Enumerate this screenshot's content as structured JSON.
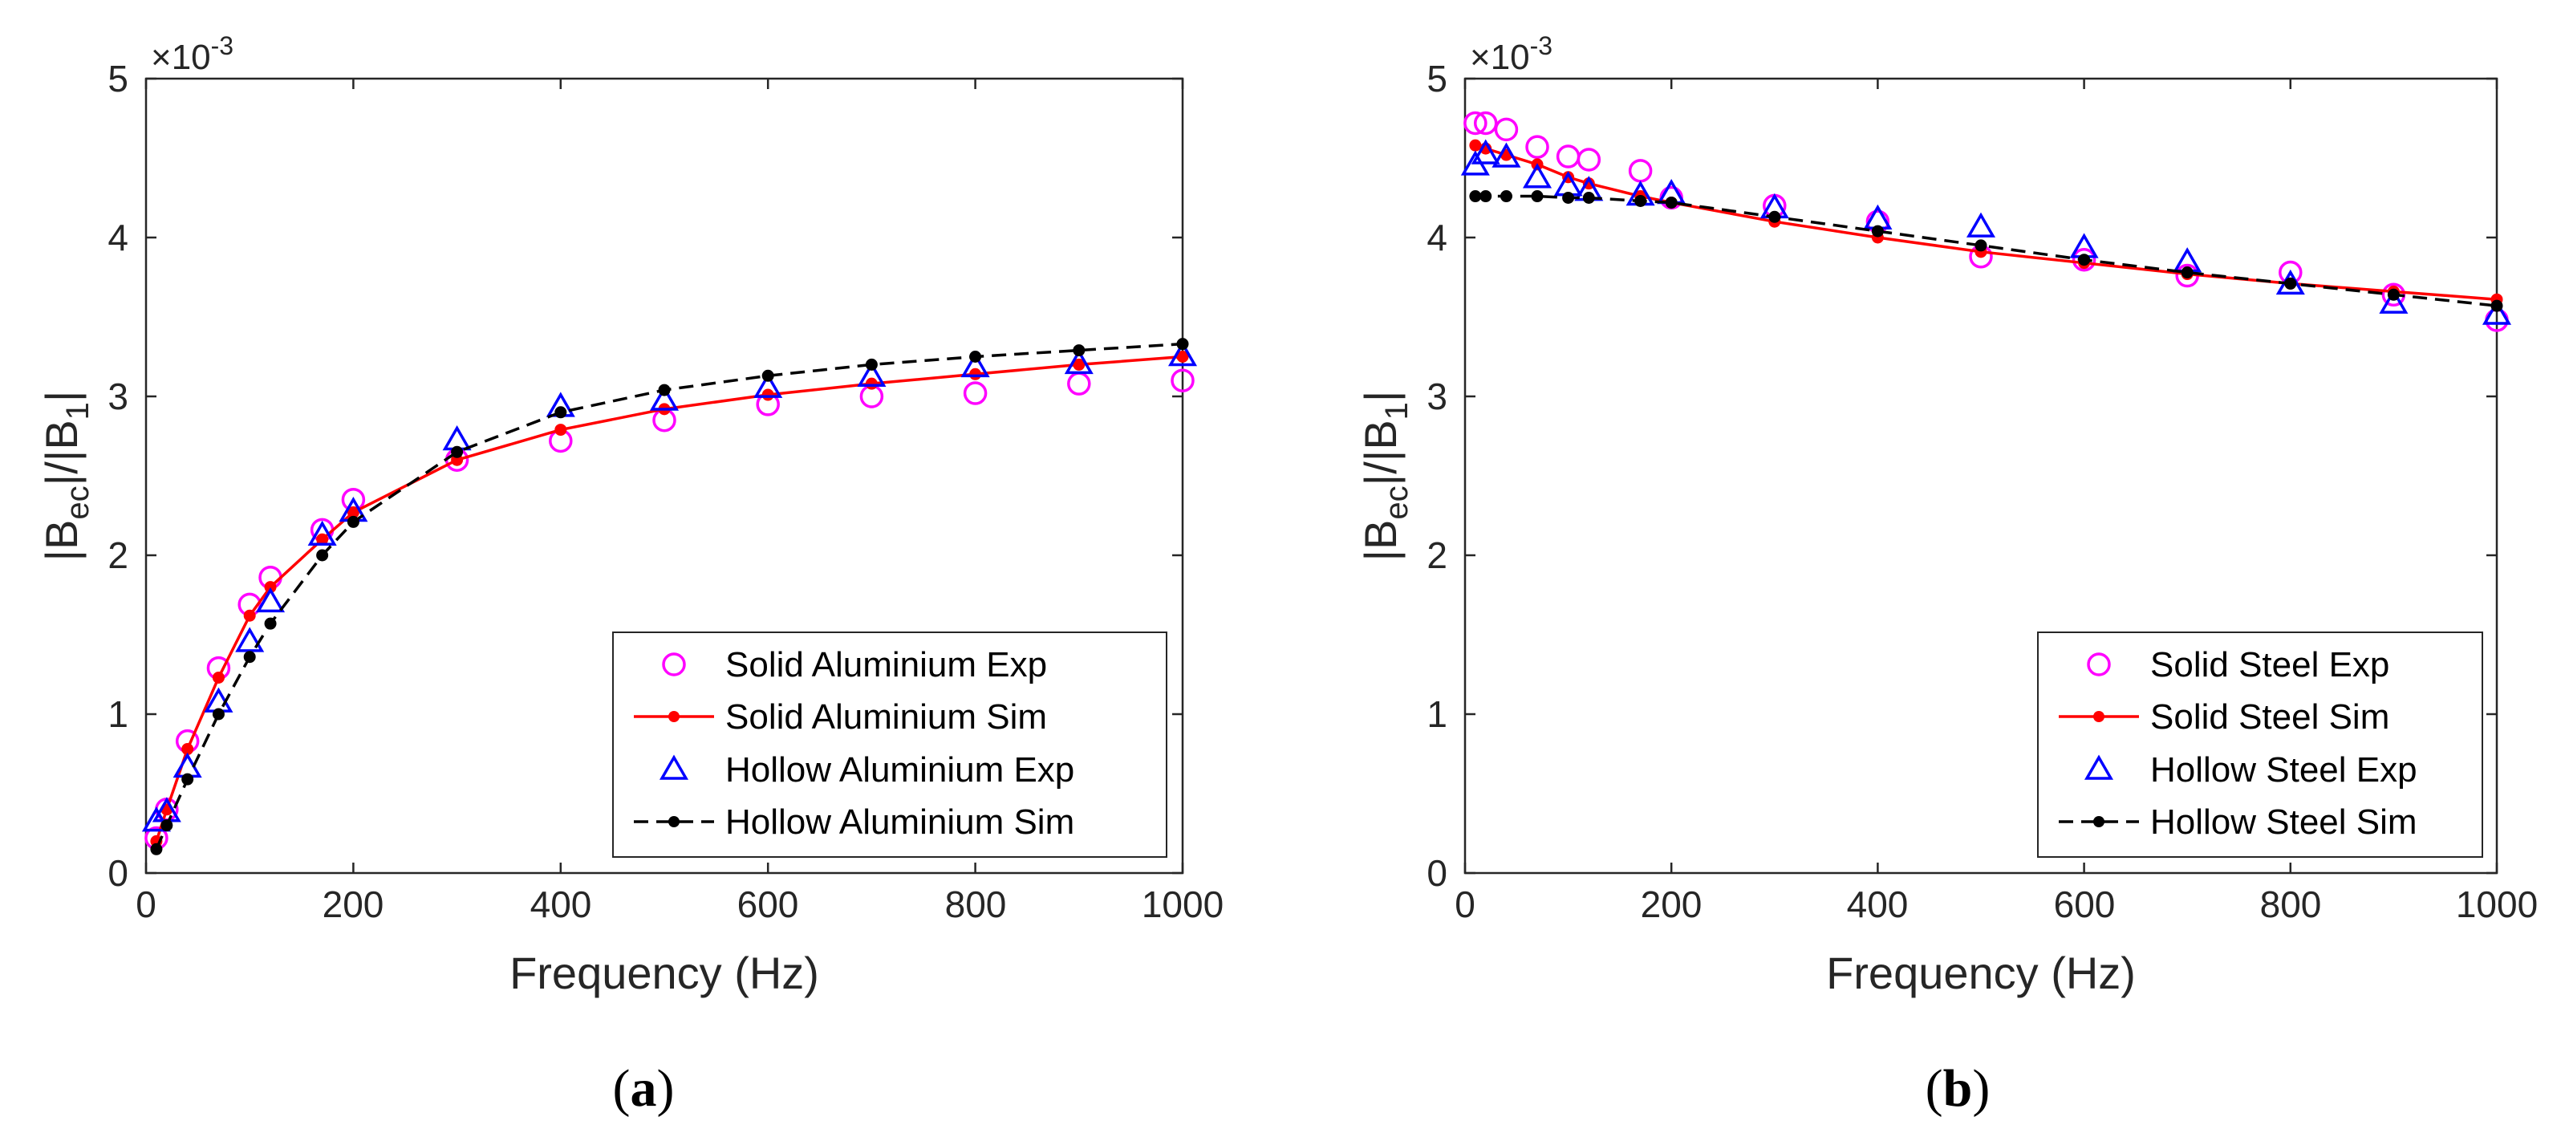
{
  "colors": {
    "solid_exp": "#ff00ff",
    "solid_sim": "#ff0000",
    "hollow_exp": "#0000ff",
    "hollow_sim": "#000000",
    "axis": "#262626"
  },
  "chart_data": [
    {
      "type": "line",
      "panel_label": "(a)",
      "subcaption_open": "(",
      "subcaption_letter": "a",
      "subcaption_close": ")",
      "xlabel": "Frequency (Hz)",
      "ylabel_parts": {
        "bar_left": "|B",
        "sub1": "ec",
        "mid": "|/|B",
        "sub2": "1",
        "bar_right": "|"
      },
      "y_exponent_base": "×10",
      "y_exponent_power": "-3",
      "xlim": [
        0,
        1000
      ],
      "ylim": [
        0,
        5
      ],
      "xticks": [
        "0",
        "200",
        "400",
        "600",
        "800",
        "1000"
      ],
      "yticks": [
        "0",
        "1",
        "2",
        "3",
        "4",
        "5"
      ],
      "legend_position": "bottom-right",
      "legend": [
        "Solid Aluminium Exp",
        "Solid Aluminium Sim",
        "Hollow Aluminium Exp",
        "Hollow Aluminium Sim"
      ],
      "series": [
        {
          "name": "Solid Aluminium Exp",
          "style": "circle",
          "x": [
            10,
            20,
            40,
            70,
            100,
            120,
            170,
            200,
            300,
            400,
            500,
            600,
            700,
            800,
            900,
            1000
          ],
          "y": [
            0.22,
            0.4,
            0.83,
            1.29,
            1.69,
            1.86,
            2.16,
            2.35,
            2.6,
            2.72,
            2.85,
            2.95,
            3.0,
            3.02,
            3.08,
            3.1
          ]
        },
        {
          "name": "Solid Aluminium Sim",
          "style": "line-dot",
          "x": [
            10,
            20,
            40,
            70,
            100,
            120,
            170,
            200,
            300,
            400,
            500,
            600,
            700,
            800,
            900,
            1000
          ],
          "y": [
            0.2,
            0.4,
            0.78,
            1.23,
            1.62,
            1.8,
            2.1,
            2.27,
            2.6,
            2.79,
            2.92,
            3.01,
            3.08,
            3.14,
            3.2,
            3.25
          ]
        },
        {
          "name": "Hollow Aluminium Exp",
          "style": "triangle",
          "x": [
            10,
            20,
            40,
            70,
            100,
            120,
            170,
            200,
            300,
            400,
            500,
            600,
            700,
            800,
            900,
            1000
          ],
          "y": [
            0.32,
            0.38,
            0.66,
            1.07,
            1.45,
            1.7,
            2.12,
            2.27,
            2.72,
            2.93,
            2.97,
            3.05,
            3.12,
            3.18,
            3.2,
            3.25
          ]
        },
        {
          "name": "Hollow Aluminium Sim",
          "style": "dash-dot",
          "x": [
            10,
            20,
            40,
            70,
            100,
            120,
            170,
            200,
            300,
            400,
            500,
            600,
            700,
            800,
            900,
            1000
          ],
          "y": [
            0.15,
            0.3,
            0.59,
            1.0,
            1.36,
            1.57,
            2.0,
            2.21,
            2.65,
            2.9,
            3.04,
            3.13,
            3.2,
            3.25,
            3.29,
            3.33
          ]
        }
      ]
    },
    {
      "type": "line",
      "panel_label": "(b)",
      "subcaption_open": "(",
      "subcaption_letter": "b",
      "subcaption_close": ")",
      "xlabel": "Frequency (Hz)",
      "ylabel_parts": {
        "bar_left": "|B",
        "sub1": "ec",
        "mid": "|/|B",
        "sub2": "1",
        "bar_right": "|"
      },
      "y_exponent_base": "×10",
      "y_exponent_power": "-3",
      "xlim": [
        0,
        1000
      ],
      "ylim": [
        0,
        5
      ],
      "xticks": [
        "0",
        "200",
        "400",
        "600",
        "800",
        "1000"
      ],
      "yticks": [
        "0",
        "1",
        "2",
        "3",
        "4",
        "5"
      ],
      "legend_position": "bottom-right",
      "legend": [
        "Solid Steel Exp",
        "Solid Steel Sim",
        "Hollow Steel Exp",
        "Hollow Steel Sim"
      ],
      "series": [
        {
          "name": "Solid Steel Exp",
          "style": "circle",
          "x": [
            10,
            20,
            40,
            70,
            100,
            120,
            170,
            200,
            300,
            400,
            500,
            600,
            700,
            800,
            900,
            1000
          ],
          "y": [
            4.72,
            4.72,
            4.68,
            4.57,
            4.51,
            4.49,
            4.42,
            4.25,
            4.2,
            4.1,
            3.88,
            3.86,
            3.76,
            3.78,
            3.64,
            3.48
          ]
        },
        {
          "name": "Solid Steel Sim",
          "style": "line-dot",
          "x": [
            10,
            20,
            40,
            70,
            100,
            120,
            170,
            200,
            300,
            400,
            500,
            600,
            700,
            800,
            900,
            1000
          ],
          "y": [
            4.58,
            4.56,
            4.52,
            4.46,
            4.38,
            4.34,
            4.26,
            4.22,
            4.1,
            4.0,
            3.91,
            3.84,
            3.77,
            3.71,
            3.66,
            3.61
          ]
        },
        {
          "name": "Hollow Steel Exp",
          "style": "triangle",
          "x": [
            10,
            20,
            40,
            70,
            100,
            120,
            170,
            200,
            300,
            400,
            500,
            600,
            700,
            800,
            900,
            1000
          ],
          "y": [
            4.45,
            4.52,
            4.5,
            4.37,
            4.32,
            4.29,
            4.26,
            4.27,
            4.18,
            4.11,
            4.06,
            3.93,
            3.84,
            3.7,
            3.58,
            3.51
          ]
        },
        {
          "name": "Hollow Steel Sim",
          "style": "dash-dot",
          "x": [
            10,
            20,
            40,
            70,
            100,
            120,
            170,
            200,
            300,
            400,
            500,
            600,
            700,
            800,
            900,
            1000
          ],
          "y": [
            4.26,
            4.26,
            4.26,
            4.26,
            4.25,
            4.25,
            4.23,
            4.22,
            4.13,
            4.04,
            3.95,
            3.86,
            3.78,
            3.71,
            3.64,
            3.57
          ]
        }
      ]
    }
  ]
}
